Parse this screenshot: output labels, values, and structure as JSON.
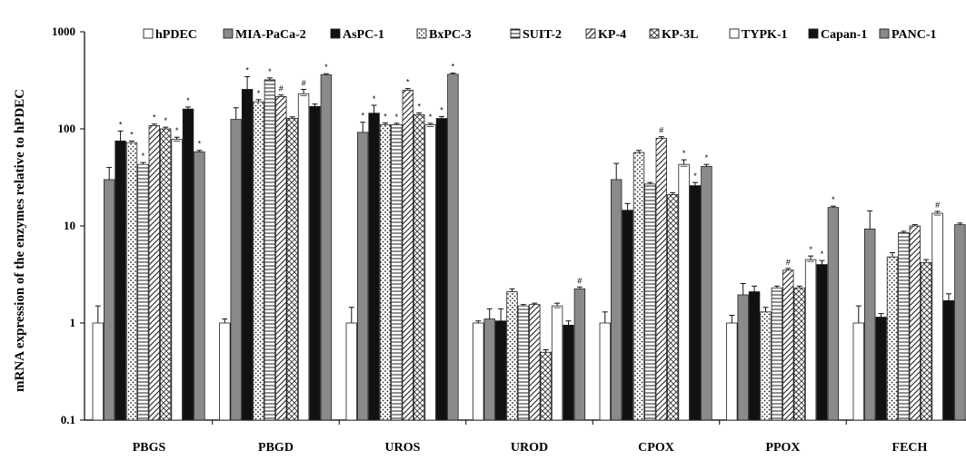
{
  "chart_data": {
    "type": "bar",
    "title": "",
    "xlabel": "",
    "ylabel": "mRNA expression of the enzymes relative to hPDEC",
    "yscale": "log",
    "ylim": [
      0.1,
      1000
    ],
    "yticks": [
      "0.1",
      "1",
      "10",
      "100",
      "1000"
    ],
    "grid": false,
    "legend_position": "top",
    "categories": [
      "PBGS",
      "PBGD",
      "UROS",
      "UROD",
      "CPOX",
      "PPOX",
      "FECH"
    ],
    "series": [
      {
        "name": "hPDEC",
        "pattern": "white",
        "values": [
          1,
          1,
          1,
          1,
          1,
          1,
          1
        ],
        "errors": [
          0.5,
          0.1,
          0.45,
          0.05,
          0.3,
          0.2,
          0.5
        ],
        "marks": [
          "",
          "",
          "",
          "",
          "",
          "",
          ""
        ]
      },
      {
        "name": "MIA-PaCa-2",
        "pattern": "gray",
        "values": [
          30,
          125,
          92,
          1.1,
          30,
          1.95,
          9.3
        ],
        "errors": [
          10,
          40,
          25,
          0.3,
          14,
          0.6,
          5
        ],
        "marks": [
          "",
          "",
          "*",
          "",
          "",
          "",
          ""
        ]
      },
      {
        "name": "AsPC-1",
        "pattern": "black",
        "values": [
          75,
          255,
          145,
          1.05,
          14.5,
          2.1,
          1.15
        ],
        "errors": [
          20,
          90,
          30,
          0.35,
          2.5,
          0.3,
          0.1
        ],
        "marks": [
          "*",
          "*",
          "*",
          "",
          "",
          "",
          ""
        ]
      },
      {
        "name": "BxPC-3",
        "pattern": "dots",
        "values": [
          72,
          190,
          110,
          2.1,
          57,
          1.3,
          4.8
        ],
        "errors": [
          3,
          10,
          5,
          0.15,
          3,
          0.15,
          0.5
        ],
        "marks": [
          "*",
          "*",
          "*",
          "",
          "",
          "",
          ""
        ]
      },
      {
        "name": "SUIT-2",
        "pattern": "hlines",
        "values": [
          43,
          320,
          110,
          1.5,
          27,
          2.3,
          8.5
        ],
        "errors": [
          2,
          15,
          4,
          0.05,
          1,
          0.1,
          0.3
        ],
        "marks": [
          "*",
          "*",
          "*",
          "",
          "",
          "",
          ""
        ]
      },
      {
        "name": "KP-4",
        "pattern": "diag",
        "values": [
          108,
          215,
          250,
          1.55,
          80,
          3.5,
          10
        ],
        "errors": [
          4,
          8,
          10,
          0.05,
          3,
          0.15,
          0.3
        ],
        "marks": [
          "*",
          "#",
          "*",
          "",
          "#",
          "#",
          ""
        ]
      },
      {
        "name": "KP-3L",
        "pattern": "cross",
        "values": [
          100,
          128,
          140,
          0.5,
          21,
          2.3,
          4.2
        ],
        "errors": [
          4,
          5,
          6,
          0.03,
          1,
          0.1,
          0.3
        ],
        "marks": [
          "*",
          "",
          "*",
          "",
          "",
          "",
          ""
        ]
      },
      {
        "name": "TYPK-1",
        "pattern": "white-box",
        "values": [
          78,
          230,
          110,
          1.5,
          43,
          4.5,
          13.5
        ],
        "errors": [
          4,
          25,
          4,
          0.1,
          5,
          0.4,
          0.6
        ],
        "marks": [
          "*",
          "#",
          "*",
          "",
          "*",
          "*",
          "#"
        ]
      },
      {
        "name": "Capan-1",
        "pattern": "black",
        "values": [
          160,
          170,
          128,
          0.95,
          26,
          4,
          1.7
        ],
        "errors": [
          8,
          10,
          6,
          0.1,
          2,
          0.4,
          0.3
        ],
        "marks": [
          "*",
          "",
          "*",
          "",
          "*",
          "*",
          ""
        ]
      },
      {
        "name": "PANC-1",
        "pattern": "gray",
        "values": [
          58,
          360,
          365,
          2.25,
          41,
          15.5,
          10.3
        ],
        "errors": [
          2,
          10,
          10,
          0.1,
          2,
          0.5,
          0.4
        ],
        "marks": [
          "*",
          "*",
          "*",
          "#",
          "*",
          "*",
          ""
        ]
      }
    ]
  }
}
